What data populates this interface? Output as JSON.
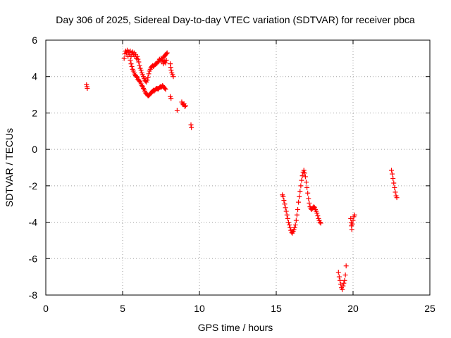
{
  "chart_data": {
    "type": "scatter",
    "title": "Day 306 of 2025, Sidereal Day-to-day VTEC variation (SDTVAR) for receiver pbca",
    "xlabel": "GPS time / hours",
    "ylabel": "SDTVAR / TECUs",
    "xlim": [
      0,
      25
    ],
    "ylim": [
      -8,
      6
    ],
    "xticks": [
      0,
      5,
      10,
      15,
      20,
      25
    ],
    "yticks": [
      -8,
      -6,
      -4,
      -2,
      0,
      2,
      4,
      6
    ],
    "xtick_labels": [
      "0",
      "5",
      "10",
      "15",
      "20",
      "25"
    ],
    "ytick_labels": [
      "-8",
      "-6",
      "-4",
      "-2",
      "0",
      "2",
      "4",
      "6"
    ],
    "grid": true,
    "marker": "+",
    "color": "#ff0000",
    "series": [
      {
        "name": "SDTVAR",
        "points": [
          [
            2.65,
            3.55
          ],
          [
            2.68,
            3.45
          ],
          [
            2.7,
            3.35
          ],
          [
            5.1,
            5.0
          ],
          [
            5.15,
            5.25
          ],
          [
            5.2,
            5.4
          ],
          [
            5.25,
            5.3
          ],
          [
            5.3,
            5.45
          ],
          [
            5.35,
            5.1
          ],
          [
            5.4,
            5.35
          ],
          [
            5.45,
            5.2
          ],
          [
            5.5,
            5.4
          ],
          [
            5.55,
            5.1
          ],
          [
            5.6,
            5.3
          ],
          [
            5.65,
            5.35
          ],
          [
            5.7,
            5.2
          ],
          [
            5.75,
            5.3
          ],
          [
            5.8,
            5.1
          ],
          [
            5.85,
            5.2
          ],
          [
            5.9,
            5.0
          ],
          [
            5.95,
            5.1
          ],
          [
            6.0,
            4.95
          ],
          [
            6.05,
            4.8
          ],
          [
            6.1,
            4.6
          ],
          [
            6.15,
            4.45
          ],
          [
            6.2,
            4.35
          ],
          [
            6.25,
            4.2
          ],
          [
            6.3,
            4.1
          ],
          [
            6.35,
            4.0
          ],
          [
            6.4,
            3.9
          ],
          [
            6.45,
            3.8
          ],
          [
            6.5,
            3.75
          ],
          [
            6.55,
            3.7
          ],
          [
            6.6,
            3.8
          ],
          [
            6.65,
            3.95
          ],
          [
            6.7,
            4.15
          ],
          [
            6.75,
            4.3
          ],
          [
            6.8,
            4.4
          ],
          [
            6.85,
            4.5
          ],
          [
            6.9,
            4.55
          ],
          [
            6.95,
            4.6
          ],
          [
            7.0,
            4.55
          ],
          [
            7.05,
            4.6
          ],
          [
            7.1,
            4.65
          ],
          [
            7.15,
            4.7
          ],
          [
            7.2,
            4.7
          ],
          [
            7.25,
            4.75
          ],
          [
            7.3,
            4.8
          ],
          [
            7.35,
            4.85
          ],
          [
            7.4,
            4.95
          ],
          [
            7.45,
            4.9
          ],
          [
            7.5,
            5.0
          ],
          [
            7.55,
            4.85
          ],
          [
            7.6,
            4.9
          ],
          [
            7.65,
            5.05
          ],
          [
            7.7,
            5.1
          ],
          [
            7.75,
            5.15
          ],
          [
            7.8,
            5.2
          ],
          [
            7.85,
            5.25
          ],
          [
            7.9,
            5.3
          ],
          [
            5.5,
            4.9
          ],
          [
            5.55,
            4.7
          ],
          [
            5.6,
            4.55
          ],
          [
            5.65,
            4.4
          ],
          [
            5.7,
            4.3
          ],
          [
            5.75,
            4.2
          ],
          [
            5.8,
            4.1
          ],
          [
            5.85,
            4.05
          ],
          [
            5.9,
            4.0
          ],
          [
            5.95,
            3.95
          ],
          [
            6.0,
            3.85
          ],
          [
            6.05,
            3.8
          ],
          [
            6.1,
            3.75
          ],
          [
            6.15,
            3.7
          ],
          [
            6.2,
            3.6
          ],
          [
            6.25,
            3.5
          ],
          [
            6.3,
            3.45
          ],
          [
            6.35,
            3.35
          ],
          [
            6.4,
            3.3
          ],
          [
            6.45,
            3.2
          ],
          [
            6.5,
            3.1
          ],
          [
            6.55,
            3.05
          ],
          [
            6.6,
            3.0
          ],
          [
            6.65,
            2.95
          ],
          [
            6.7,
            2.95
          ],
          [
            6.75,
            3.0
          ],
          [
            6.8,
            3.05
          ],
          [
            6.85,
            3.1
          ],
          [
            6.9,
            3.15
          ],
          [
            6.95,
            3.2
          ],
          [
            7.0,
            3.25
          ],
          [
            7.05,
            3.2
          ],
          [
            7.1,
            3.25
          ],
          [
            7.15,
            3.3
          ],
          [
            7.2,
            3.35
          ],
          [
            7.25,
            3.35
          ],
          [
            7.3,
            3.3
          ],
          [
            7.35,
            3.35
          ],
          [
            7.4,
            3.4
          ],
          [
            7.45,
            3.45
          ],
          [
            7.5,
            3.4
          ],
          [
            7.55,
            3.45
          ],
          [
            7.6,
            3.5
          ],
          [
            7.65,
            3.45
          ],
          [
            7.7,
            3.4
          ],
          [
            7.75,
            3.35
          ],
          [
            7.8,
            3.3
          ],
          [
            7.65,
            4.7
          ],
          [
            7.7,
            4.8
          ],
          [
            7.75,
            4.85
          ],
          [
            7.8,
            4.75
          ],
          [
            7.85,
            4.9
          ],
          [
            8.1,
            4.7
          ],
          [
            8.13,
            4.5
          ],
          [
            8.16,
            4.35
          ],
          [
            8.2,
            4.2
          ],
          [
            8.25,
            4.1
          ],
          [
            8.3,
            4.0
          ],
          [
            8.1,
            2.9
          ],
          [
            8.15,
            2.8
          ],
          [
            8.55,
            2.15
          ],
          [
            8.85,
            2.6
          ],
          [
            8.9,
            2.5
          ],
          [
            8.95,
            2.45
          ],
          [
            9.0,
            2.5
          ],
          [
            9.05,
            2.35
          ],
          [
            9.1,
            2.4
          ],
          [
            9.45,
            1.35
          ],
          [
            9.48,
            1.2
          ],
          [
            15.4,
            -2.5
          ],
          [
            15.45,
            -2.6
          ],
          [
            15.5,
            -2.8
          ],
          [
            15.55,
            -3.0
          ],
          [
            15.6,
            -3.2
          ],
          [
            15.65,
            -3.4
          ],
          [
            15.7,
            -3.6
          ],
          [
            15.75,
            -3.8
          ],
          [
            15.8,
            -4.0
          ],
          [
            15.85,
            -4.15
          ],
          [
            15.9,
            -4.3
          ],
          [
            15.95,
            -4.45
          ],
          [
            16.0,
            -4.55
          ],
          [
            16.05,
            -4.6
          ],
          [
            16.1,
            -4.5
          ],
          [
            16.15,
            -4.4
          ],
          [
            16.2,
            -4.3
          ],
          [
            16.25,
            -4.15
          ],
          [
            16.3,
            -3.9
          ],
          [
            16.35,
            -3.6
          ],
          [
            16.4,
            -3.3
          ],
          [
            16.45,
            -2.9
          ],
          [
            16.5,
            -2.6
          ],
          [
            16.55,
            -2.3
          ],
          [
            16.6,
            -2.0
          ],
          [
            16.65,
            -1.7
          ],
          [
            16.7,
            -1.45
          ],
          [
            16.75,
            -1.25
          ],
          [
            16.8,
            -1.15
          ],
          [
            16.85,
            -1.3
          ],
          [
            16.9,
            -1.5
          ],
          [
            16.95,
            -1.8
          ],
          [
            17.0,
            -2.1
          ],
          [
            17.05,
            -2.4
          ],
          [
            17.1,
            -2.7
          ],
          [
            17.15,
            -2.95
          ],
          [
            17.2,
            -3.15
          ],
          [
            17.25,
            -3.25
          ],
          [
            17.3,
            -3.3
          ],
          [
            17.35,
            -3.25
          ],
          [
            17.4,
            -3.2
          ],
          [
            17.45,
            -3.15
          ],
          [
            17.5,
            -3.2
          ],
          [
            17.55,
            -3.3
          ],
          [
            17.6,
            -3.4
          ],
          [
            17.65,
            -3.5
          ],
          [
            17.7,
            -3.65
          ],
          [
            17.75,
            -3.8
          ],
          [
            17.8,
            -3.9
          ],
          [
            17.85,
            -4.0
          ],
          [
            17.9,
            -4.05
          ],
          [
            19.05,
            -6.75
          ],
          [
            19.1,
            -7.0
          ],
          [
            19.15,
            -7.2
          ],
          [
            19.2,
            -7.4
          ],
          [
            19.25,
            -7.6
          ],
          [
            19.3,
            -7.7
          ],
          [
            19.35,
            -7.5
          ],
          [
            19.4,
            -7.35
          ],
          [
            19.45,
            -7.2
          ],
          [
            19.5,
            -6.9
          ],
          [
            19.55,
            -6.4
          ],
          [
            19.85,
            -3.8
          ],
          [
            19.88,
            -4.0
          ],
          [
            19.9,
            -4.2
          ],
          [
            19.92,
            -4.4
          ],
          [
            19.95,
            -4.1
          ],
          [
            20.0,
            -3.9
          ],
          [
            20.05,
            -3.7
          ],
          [
            20.1,
            -3.6
          ],
          [
            22.5,
            -1.15
          ],
          [
            22.55,
            -1.35
          ],
          [
            22.6,
            -1.6
          ],
          [
            22.65,
            -1.85
          ],
          [
            22.7,
            -2.1
          ],
          [
            22.75,
            -2.35
          ],
          [
            22.8,
            -2.55
          ],
          [
            22.85,
            -2.65
          ]
        ]
      }
    ]
  }
}
